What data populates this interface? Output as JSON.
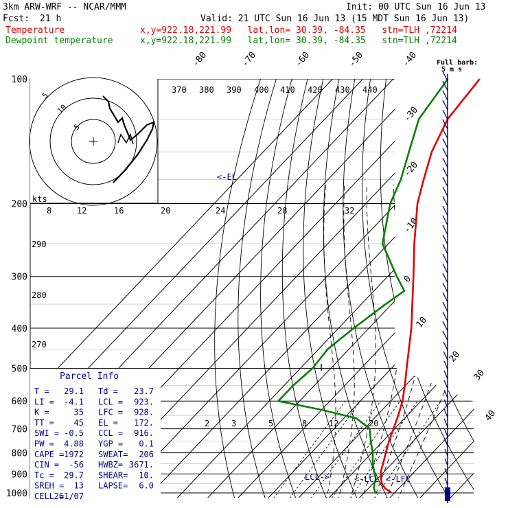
{
  "header": {
    "model": "3km ARW-WRF -- NCAR/MMM",
    "init": "Init: 00 UTC Sun 16 Jun 13",
    "fcst_label": "Fcst:",
    "fcst_value": "21 h",
    "valid": "Valid: 21 UTC Sun 16 Jun 13 (15 MDT Sun 16 Jun 13)"
  },
  "legend": [
    {
      "label": "Temperature",
      "info": "x,y=922.18,221.99   lat,lon= 30.39, -84.35   stn=TLH ,72214",
      "color": "#e00000"
    },
    {
      "label": "Dewpoint temperature",
      "info": "x,y=922.18,221.99   lat,lon= 30.39, -84.35   stn=TLH ,72214",
      "color": "#008000"
    }
  ],
  "wind_key": {
    "line1": "Full barb:",
    "line2": "5 m s"
  },
  "annotations": {
    "el": "<-EL",
    "lcl_left": "LCL->",
    "lcl_right": "<-LCL",
    "lfc_right": "<-LFC"
  },
  "parcel_info": {
    "title": "Parcel Info",
    "rows": [
      [
        "T  =",
        "29.1",
        "Td =",
        "23.7"
      ],
      [
        "LI =",
        "-4.1",
        "LCL =",
        "923."
      ],
      [
        "K  =",
        "35",
        "LFC =",
        "928."
      ],
      [
        "TT =",
        "45",
        "EL =",
        "172."
      ],
      [
        "SWI =",
        "-0.5",
        "CCL =",
        "916."
      ],
      [
        "PW =",
        "4.88",
        "YGP =",
        "0.1"
      ],
      [
        "CAPE =",
        "1972",
        "SWEAT=",
        "206"
      ],
      [
        "CIN =",
        "-56",
        "HWBZ=",
        "3671."
      ],
      [
        "Tc =",
        "29.7",
        "SHEAR=",
        "10."
      ],
      [
        "SREH =",
        "13",
        "LAPSE=",
        "6.0"
      ],
      [
        "CELL =",
        "261/07",
        "",
        ""
      ]
    ]
  },
  "hodograph": {
    "axis_label": "kts",
    "ring_labels": [
      "5",
      "10",
      "5"
    ]
  },
  "chart_data": {
    "type": "line",
    "title": "",
    "xlabel": "",
    "ylabel": "",
    "pressure_levels": [
      100,
      200,
      300,
      400,
      500,
      600,
      700,
      800,
      900,
      1000
    ],
    "ylim": [
      1000,
      100
    ],
    "isotherm_labels": [
      "-80",
      "-70",
      "-60",
      "-50",
      "-40",
      "-30",
      "-20",
      "-10",
      "0",
      "10",
      "20",
      "30",
      "40"
    ],
    "theta_labels": [
      "370",
      "380",
      "390",
      "400",
      "410",
      "420",
      "430",
      "440"
    ],
    "theta_left_labels": [
      "290",
      "280",
      "270"
    ],
    "mixing_ratio_labels": [
      "2",
      "3",
      "5",
      "8",
      "12",
      "20"
    ],
    "hodo_speed_labels": [
      "8",
      "12",
      "16",
      "20",
      "24",
      "28",
      "32"
    ],
    "series": [
      {
        "name": "Temperature",
        "color": "#e00000",
        "points": [
          [
            1000,
            29.1
          ],
          [
            975,
            25.5
          ],
          [
            950,
            23.0
          ],
          [
            925,
            21.2
          ],
          [
            900,
            19.6
          ],
          [
            875,
            18.2
          ],
          [
            850,
            17.1
          ],
          [
            800,
            14.6
          ],
          [
            750,
            12.0
          ],
          [
            700,
            9.6
          ],
          [
            650,
            7.0
          ],
          [
            600,
            3.9
          ],
          [
            550,
            -0.2
          ],
          [
            500,
            -5.0
          ],
          [
            450,
            -10.2
          ],
          [
            400,
            -16.0
          ],
          [
            350,
            -23.2
          ],
          [
            300,
            -31.5
          ],
          [
            250,
            -41.5
          ],
          [
            200,
            -53.0
          ],
          [
            175,
            -58.5
          ],
          [
            150,
            -64.5
          ],
          [
            125,
            -69.5
          ],
          [
            100,
            -71.5
          ]
        ]
      },
      {
        "name": "Dewpoint temperature",
        "color": "#008000",
        "points": [
          [
            1000,
            23.7
          ],
          [
            975,
            21.8
          ],
          [
            950,
            20.5
          ],
          [
            925,
            19.5
          ],
          [
            900,
            17.5
          ],
          [
            850,
            13.7
          ],
          [
            800,
            10.3
          ],
          [
            750,
            6.0
          ],
          [
            700,
            1.8
          ],
          [
            660,
            -6.0
          ],
          [
            630,
            -20.0
          ],
          [
            600,
            -37.0
          ],
          [
            550,
            -37.0
          ],
          [
            500,
            -36.0
          ],
          [
            450,
            -37.0
          ],
          [
            400,
            -35.0
          ],
          [
            350,
            -32.0
          ],
          [
            325,
            -30.0
          ],
          [
            300,
            -37.0
          ],
          [
            250,
            -52.0
          ],
          [
            200,
            -62.0
          ],
          [
            175,
            -66.0
          ],
          [
            150,
            -72.0
          ],
          [
            125,
            -79.0
          ],
          [
            100,
            -82.0
          ]
        ]
      }
    ]
  }
}
